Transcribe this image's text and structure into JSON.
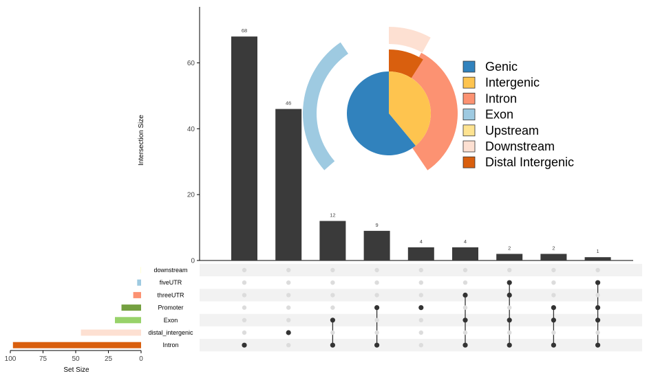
{
  "chart_data": [
    {
      "type": "bar",
      "title": "",
      "ylabel": "Intersection Size",
      "ylim": [
        0,
        77
      ],
      "yticks": [
        0,
        20,
        40,
        60
      ],
      "values": [
        68,
        46,
        12,
        9,
        4,
        4,
        2,
        2,
        1
      ],
      "data_labels": [
        "68",
        "46",
        "12",
        "9",
        "4",
        "4",
        "2",
        "2",
        "1"
      ],
      "bar_color": "#3a3a3a"
    },
    {
      "type": "matrix",
      "sets": [
        "downstream",
        "fiveUTR",
        "threeUTR",
        "Promoter",
        "Exon",
        "distal_intergenic",
        "Intron"
      ],
      "intersections": [
        [
          "Intron"
        ],
        [
          "distal_intergenic"
        ],
        [
          "Exon",
          "Intron"
        ],
        [
          "Promoter",
          "Intron"
        ],
        [
          "Promoter"
        ],
        [
          "threeUTR",
          "Exon",
          "Intron"
        ],
        [
          "fiveUTR",
          "threeUTR",
          "Exon",
          "Intron"
        ],
        [
          "Promoter",
          "Exon",
          "Intron"
        ],
        [
          "fiveUTR",
          "Promoter",
          "Exon",
          "Intron"
        ]
      ],
      "active_color": "#333333",
      "inactive_color": "#dcdcdc"
    },
    {
      "type": "bar",
      "orientation": "horizontal",
      "xlabel": "Set Size",
      "xlim": [
        0,
        100
      ],
      "xticks": [
        100,
        75,
        50,
        25,
        0
      ],
      "categories": [
        "downstream",
        "fiveUTR",
        "threeUTR",
        "Promoter",
        "Exon",
        "distal_intergenic",
        "Intron"
      ],
      "values": [
        0.4,
        3,
        6,
        15,
        20,
        46,
        98
      ],
      "colors": [
        "#ffffcc",
        "#9ecae1",
        "#fc9272",
        "#74a040",
        "#98d26a",
        "#fde0d2",
        "#d95f0e"
      ]
    },
    {
      "type": "pie",
      "subtype": "nested-pie",
      "inner": [
        {
          "name": "Genic",
          "value": 61,
          "color": "#3182bd"
        },
        {
          "name": "Intergenic",
          "value": 39,
          "color": "#fec44f"
        }
      ],
      "outer": [
        {
          "name": "Intron",
          "value": 32,
          "color": "#fc9272"
        },
        {
          "name": "Exon",
          "value": 29,
          "color": "#9ecae1"
        },
        {
          "name": "Downstream",
          "value": 7,
          "color": "#fde0d2"
        },
        {
          "name": "Distal Intergenic",
          "value": 10,
          "color": "#d95f0e"
        }
      ],
      "legend": [
        {
          "label": "Genic",
          "color": "#3182bd"
        },
        {
          "label": "Intergenic",
          "color": "#fec44f"
        },
        {
          "label": "Intron",
          "color": "#fc9272"
        },
        {
          "label": "Exon",
          "color": "#9ecae1"
        },
        {
          "label": "Upstream",
          "color": "#fee391"
        },
        {
          "label": "Downstream",
          "color": "#fde0d2"
        },
        {
          "label": "Distal Intergenic",
          "color": "#d95f0e"
        }
      ],
      "legend_position": "right"
    }
  ]
}
